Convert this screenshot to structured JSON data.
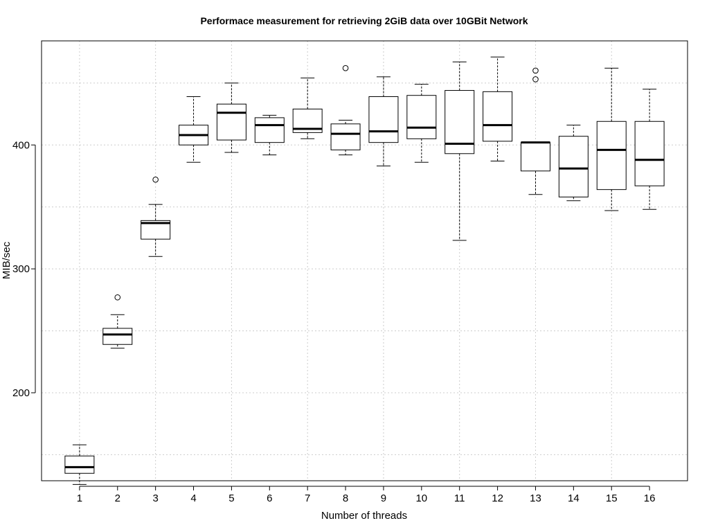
{
  "chart_data": {
    "type": "boxplot",
    "title": "Performace measurement for retrieving 2GiB data over 10GBit Network",
    "xlabel": "Number of threads",
    "ylabel": "MIB/sec",
    "categories": [
      "1",
      "2",
      "3",
      "4",
      "5",
      "6",
      "7",
      "8",
      "9",
      "10",
      "11",
      "12",
      "13",
      "14",
      "15",
      "16"
    ],
    "xlim": [
      0,
      17
    ],
    "ylim": [
      129,
      484
    ],
    "y_ticks": [
      200,
      300,
      400
    ],
    "y_grid": [
      150,
      200,
      250,
      300,
      350,
      400,
      450
    ],
    "grid": true,
    "boxes": [
      {
        "label": "1",
        "min": 126,
        "q1": 135,
        "median": 140,
        "q3": 149,
        "max": 158,
        "outliers": []
      },
      {
        "label": "2",
        "min": 236,
        "q1": 239,
        "median": 247,
        "q3": 252,
        "max": 263,
        "outliers": [
          277
        ]
      },
      {
        "label": "3",
        "min": 310,
        "q1": 324,
        "median": 337,
        "q3": 339,
        "max": 352,
        "outliers": [
          372
        ]
      },
      {
        "label": "4",
        "min": 386,
        "q1": 400,
        "median": 408,
        "q3": 416,
        "max": 439,
        "outliers": []
      },
      {
        "label": "5",
        "min": 394,
        "q1": 404,
        "median": 426,
        "q3": 433,
        "max": 450,
        "outliers": []
      },
      {
        "label": "6",
        "min": 392,
        "q1": 402,
        "median": 416,
        "q3": 422,
        "max": 424,
        "outliers": []
      },
      {
        "label": "7",
        "min": 405,
        "q1": 410,
        "median": 413,
        "q3": 429,
        "max": 454,
        "outliers": []
      },
      {
        "label": "8",
        "min": 392,
        "q1": 396,
        "median": 409,
        "q3": 417,
        "max": 420,
        "outliers": [
          462
        ]
      },
      {
        "label": "9",
        "min": 383,
        "q1": 402,
        "median": 411,
        "q3": 439,
        "max": 455,
        "outliers": []
      },
      {
        "label": "10",
        "min": 386,
        "q1": 405,
        "median": 414,
        "q3": 440,
        "max": 449,
        "outliers": []
      },
      {
        "label": "11",
        "min": 323,
        "q1": 393,
        "median": 401,
        "q3": 444,
        "max": 467,
        "outliers": []
      },
      {
        "label": "12",
        "min": 387,
        "q1": 403,
        "median": 416,
        "q3": 443,
        "max": 471,
        "outliers": []
      },
      {
        "label": "13",
        "min": 360,
        "q1": 379,
        "median": 402,
        "q3": 402,
        "max": 402,
        "outliers": [
          453,
          460
        ]
      },
      {
        "label": "14",
        "min": 355,
        "q1": 358,
        "median": 381,
        "q3": 407,
        "max": 416,
        "outliers": []
      },
      {
        "label": "15",
        "min": 347,
        "q1": 364,
        "median": 396,
        "q3": 419,
        "max": 462,
        "outliers": []
      },
      {
        "label": "16",
        "min": 348,
        "q1": 367,
        "median": 388,
        "q3": 419,
        "max": 445,
        "outliers": []
      }
    ]
  }
}
